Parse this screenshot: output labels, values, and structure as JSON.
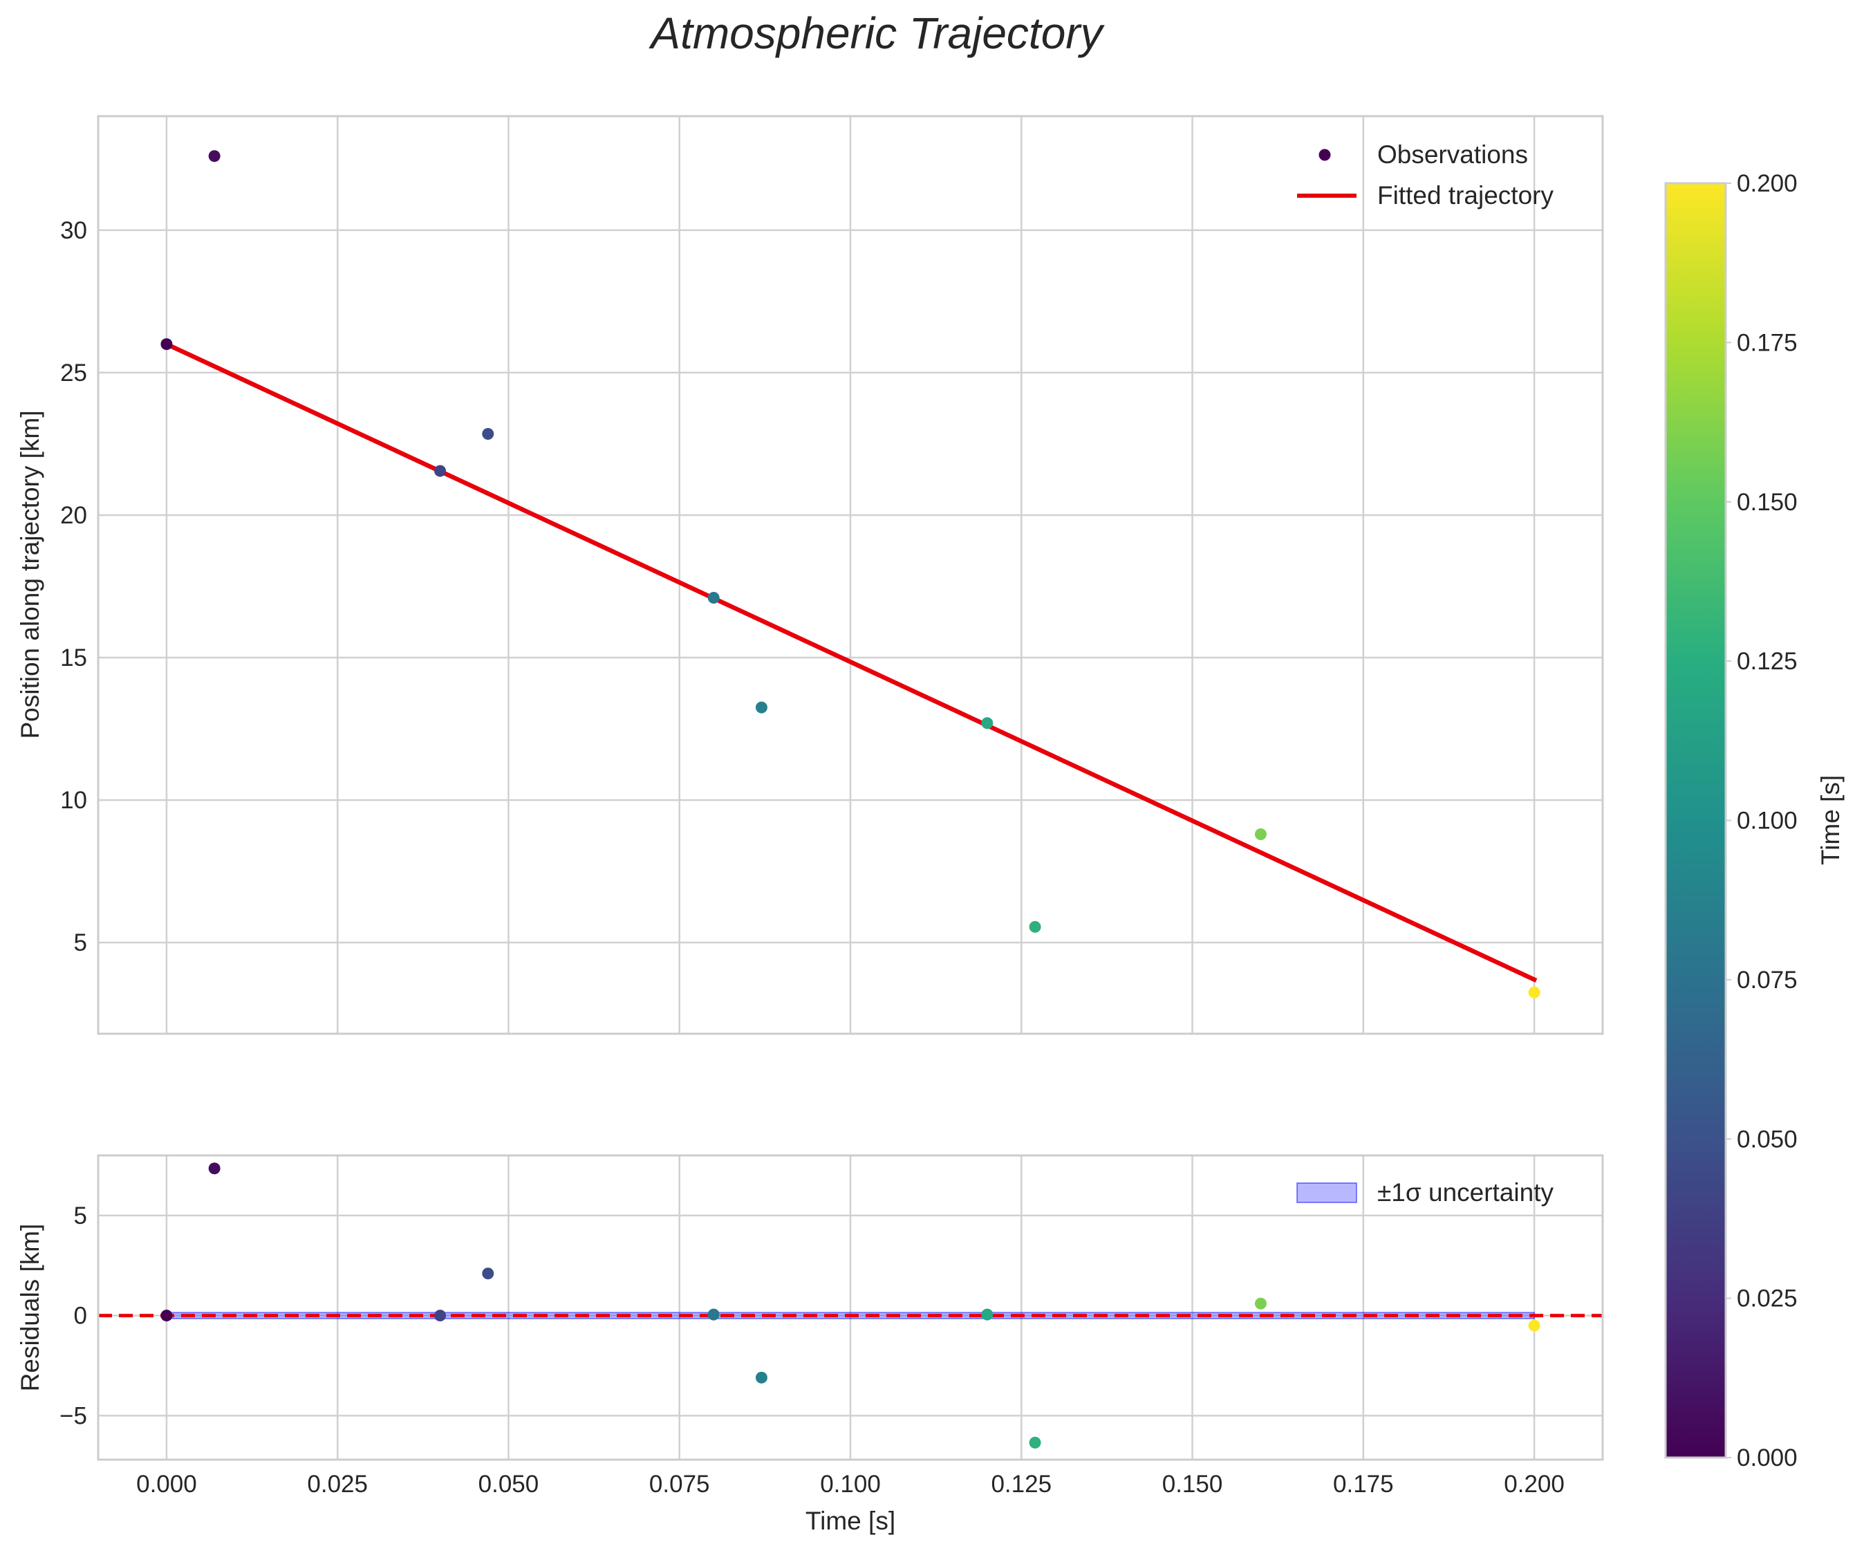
{
  "figure": {
    "title": "Atmospheric Trajectory"
  },
  "chart_data": [
    {
      "type": "scatter",
      "panel": "top",
      "title": "Atmospheric Trajectory",
      "xlabel": "",
      "ylabel": "Position along trajectory [km]",
      "xlim": [
        -0.01,
        0.21
      ],
      "ylim": [
        1.8,
        34.0
      ],
      "xticks": [
        0.0,
        0.025,
        0.05,
        0.075,
        0.1,
        0.125,
        0.15,
        0.175,
        0.2
      ],
      "yticks": [
        5,
        10,
        15,
        20,
        25,
        30
      ],
      "ytick_labels": [
        "5",
        "10",
        "15",
        "20",
        "25",
        "30"
      ],
      "grid": true,
      "legend_position": "top-right",
      "series": [
        {
          "name": "Observations",
          "kind": "scatter",
          "colormap": "viridis",
          "color_by": "time",
          "points": [
            {
              "x": 0.0,
              "y": 26.0
            },
            {
              "x": 0.007,
              "y": 32.6
            },
            {
              "x": 0.04,
              "y": 21.55
            },
            {
              "x": 0.047,
              "y": 22.85
            },
            {
              "x": 0.08,
              "y": 17.1
            },
            {
              "x": 0.087,
              "y": 13.25
            },
            {
              "x": 0.12,
              "y": 12.7
            },
            {
              "x": 0.127,
              "y": 5.55
            },
            {
              "x": 0.16,
              "y": 8.8
            },
            {
              "x": 0.2,
              "y": 3.25
            }
          ]
        },
        {
          "name": "Fitted trajectory",
          "kind": "line",
          "color": "#e8000b",
          "points": [
            {
              "x": 0.0,
              "y": 26.0
            },
            {
              "x": 0.2,
              "y": 3.7
            }
          ]
        }
      ]
    },
    {
      "type": "scatter",
      "panel": "bottom",
      "xlabel": "Time [s]",
      "ylabel": "Residuals [km]",
      "xlim": [
        -0.01,
        0.21
      ],
      "ylim": [
        -7.2,
        8.0
      ],
      "xticks": [
        0.0,
        0.025,
        0.05,
        0.075,
        0.1,
        0.125,
        0.15,
        0.175,
        0.2
      ],
      "xtick_labels": [
        "0.000",
        "0.025",
        "0.050",
        "0.075",
        "0.100",
        "0.125",
        "0.150",
        "0.175",
        "0.200"
      ],
      "yticks": [
        -5,
        0,
        5
      ],
      "ytick_labels": [
        "−5",
        "0",
        "5"
      ],
      "grid": true,
      "legend_position": "top-right",
      "reference_line": {
        "y": 0,
        "color": "#e8000b",
        "style": "dashed"
      },
      "band": {
        "name": "±1σ uncertainty",
        "color": "#0000ff",
        "x": [
          0.0,
          0.2
        ],
        "lower": [
          -0.15,
          -0.15
        ],
        "upper": [
          0.15,
          0.15
        ]
      },
      "series": [
        {
          "name": "Residuals",
          "kind": "scatter",
          "colormap": "viridis",
          "color_by": "time",
          "points": [
            {
              "x": 0.0,
              "y": 0.0
            },
            {
              "x": 0.007,
              "y": 7.35
            },
            {
              "x": 0.04,
              "y": 0.0
            },
            {
              "x": 0.047,
              "y": 2.1
            },
            {
              "x": 0.08,
              "y": 0.05
            },
            {
              "x": 0.087,
              "y": -3.1
            },
            {
              "x": 0.12,
              "y": 0.05
            },
            {
              "x": 0.127,
              "y": -6.35
            },
            {
              "x": 0.16,
              "y": 0.6
            },
            {
              "x": 0.2,
              "y": -0.5
            }
          ]
        }
      ]
    },
    {
      "type": "colorbar",
      "label": "Time [s]",
      "colormap": "viridis",
      "range": [
        0.0,
        0.2
      ],
      "ticks": [
        0.0,
        0.025,
        0.05,
        0.075,
        0.1,
        0.125,
        0.15,
        0.175,
        0.2
      ],
      "tick_labels": [
        "0.000",
        "0.025",
        "0.050",
        "0.075",
        "0.100",
        "0.125",
        "0.150",
        "0.175",
        "0.200"
      ]
    }
  ]
}
